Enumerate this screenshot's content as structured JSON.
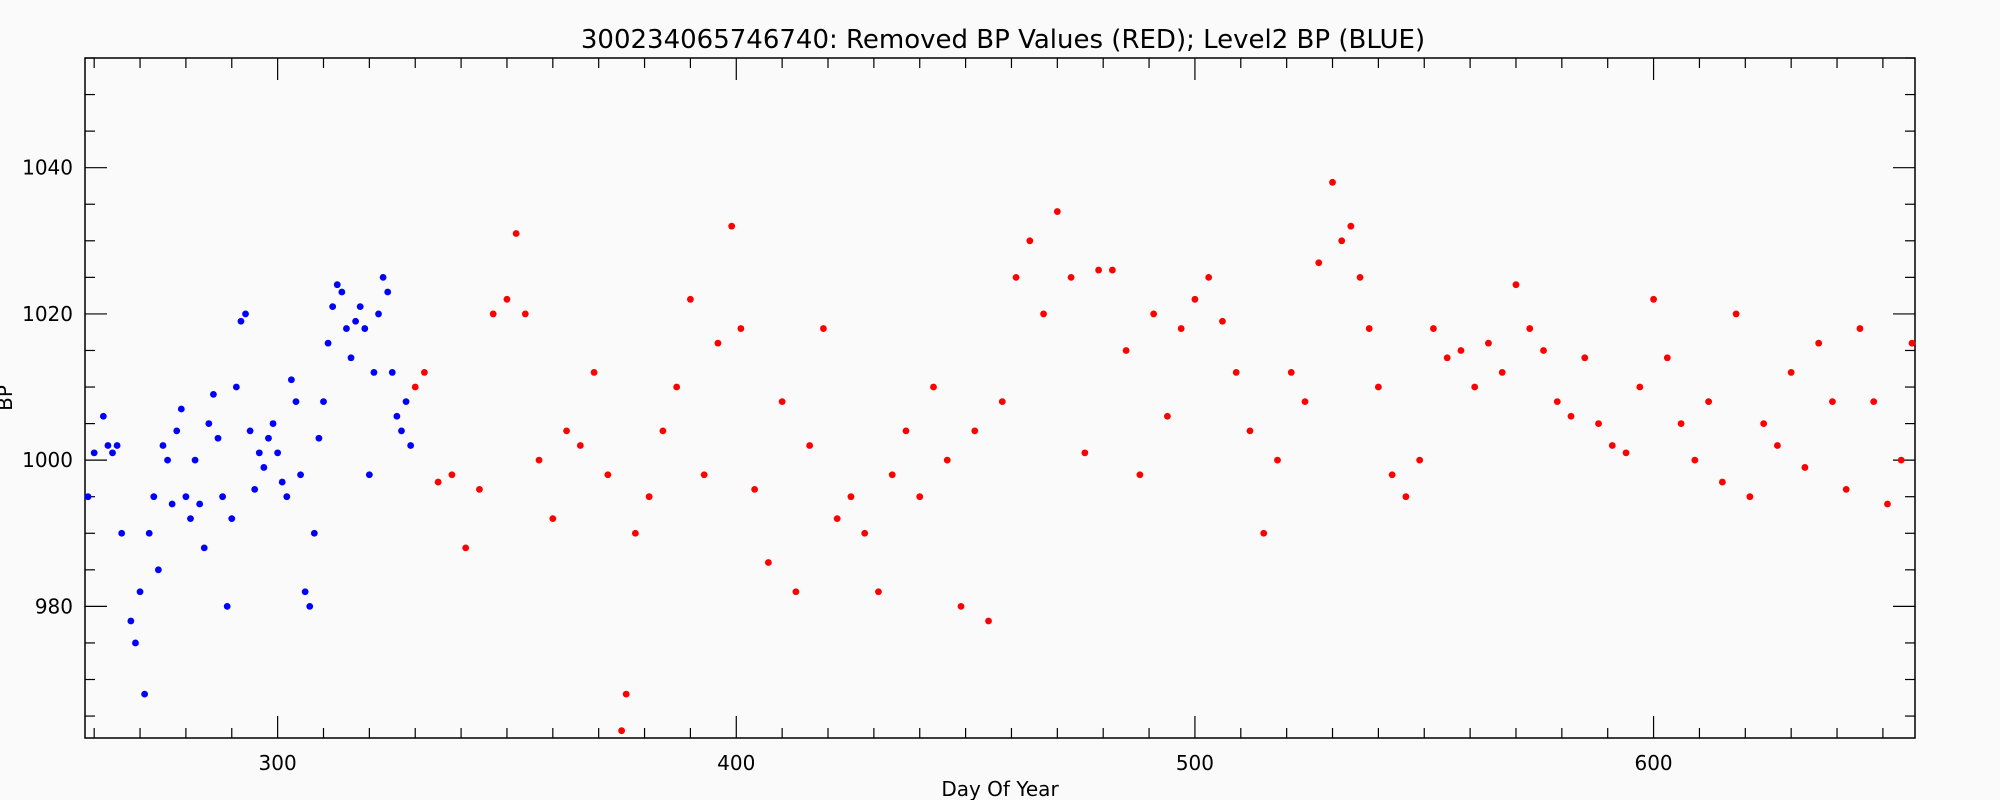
{
  "chart_data": {
    "type": "scatter",
    "title": "300234065746740: Removed BP Values (RED); Level2 BP (BLUE)",
    "xlabel": "Day Of Year",
    "ylabel": "BP",
    "xlim": [
      258,
      657
    ],
    "ylim": [
      962,
      1055
    ],
    "x_ticks": [
      300,
      400,
      500,
      600
    ],
    "y_ticks": [
      980,
      1000,
      1020,
      1040
    ],
    "grid": false,
    "series": [
      {
        "name": "Level2 BP",
        "color": "#0000ff",
        "x": [
          258,
          260,
          262,
          263,
          264,
          265,
          266,
          268,
          269,
          270,
          271,
          272,
          273,
          274,
          275,
          276,
          277,
          278,
          279,
          280,
          281,
          282,
          283,
          284,
          285,
          286,
          287,
          288,
          289,
          290,
          291,
          292,
          293,
          294,
          295,
          296,
          297,
          298,
          299,
          300,
          301,
          302,
          303,
          304,
          305,
          306,
          307,
          308,
          309,
          310,
          311,
          312,
          313,
          314,
          315,
          316,
          317,
          318,
          319,
          320,
          321,
          322,
          323,
          324,
          325,
          326,
          327,
          328,
          329
        ],
        "y": [
          995,
          1001,
          1006,
          1002,
          1001,
          1002,
          990,
          978,
          975,
          982,
          968,
          990,
          995,
          985,
          1002,
          1000,
          994,
          1004,
          1007,
          995,
          992,
          1000,
          994,
          988,
          1005,
          1009,
          1003,
          995,
          980,
          992,
          1010,
          1019,
          1020,
          1004,
          996,
          1001,
          999,
          1003,
          1005,
          1001,
          997,
          995,
          1011,
          1008,
          998,
          982,
          980,
          990,
          1003,
          1008,
          1016,
          1021,
          1024,
          1023,
          1018,
          1014,
          1019,
          1021,
          1018,
          998,
          1012,
          1020,
          1025,
          1023,
          1012,
          1006,
          1004,
          1008,
          1002
        ]
      },
      {
        "name": "Removed BP Values",
        "color": "#ff0000",
        "x": [
          330,
          332,
          335,
          338,
          341,
          344,
          347,
          350,
          352,
          354,
          357,
          360,
          363,
          366,
          369,
          372,
          375,
          376,
          378,
          381,
          384,
          387,
          390,
          393,
          396,
          399,
          401,
          404,
          407,
          410,
          413,
          416,
          419,
          422,
          425,
          428,
          431,
          434,
          437,
          440,
          443,
          446,
          449,
          452,
          455,
          458,
          461,
          464,
          467,
          470,
          473,
          476,
          479,
          482,
          485,
          488,
          491,
          494,
          497,
          500,
          503,
          506,
          509,
          512,
          515,
          518,
          521,
          524,
          527,
          530,
          532,
          534,
          536,
          538,
          540,
          543,
          546,
          549,
          552,
          555,
          558,
          561,
          564,
          567,
          570,
          573,
          576,
          579,
          582,
          585,
          588,
          591,
          594,
          597,
          600,
          603,
          606,
          609,
          612,
          615,
          618,
          621,
          624,
          627,
          630,
          633,
          636,
          639,
          642,
          645,
          648,
          651,
          654,
          657
        ],
        "y": [
          1010,
          1012,
          997,
          998,
          988,
          996,
          1020,
          1022,
          1031,
          1020,
          1000,
          992,
          1004,
          1002,
          1012,
          998,
          963,
          968,
          990,
          995,
          1004,
          1010,
          1022,
          998,
          1016,
          1032,
          1018,
          996,
          986,
          1008,
          982,
          1002,
          1018,
          992,
          995,
          990,
          982,
          998,
          1004,
          995,
          1010,
          1000,
          980,
          1004,
          978,
          1008,
          1025,
          1030,
          1020,
          1034,
          1025,
          1001,
          1026,
          1026,
          1015,
          998,
          1020,
          1006,
          1018,
          1022,
          1025,
          1019,
          1012,
          1004,
          990,
          1000,
          1012,
          1008,
          1027,
          1038,
          1030,
          1032,
          1025,
          1018,
          1010,
          998,
          995,
          1000,
          1018,
          1014,
          1015,
          1010,
          1016,
          1012,
          1024,
          1018,
          1015,
          1008,
          1006,
          1014,
          1005,
          1002,
          1001,
          1010,
          1022,
          1014,
          1005,
          1000,
          1008,
          997,
          1020,
          995,
          1005,
          1002,
          1012,
          999,
          1016,
          1008,
          996,
          1018,
          1008,
          994,
          1000,
          1016
        ]
      }
    ]
  }
}
